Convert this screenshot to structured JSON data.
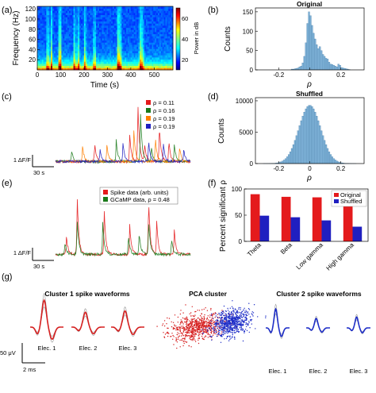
{
  "figure": {
    "panel_labels": [
      "(a)",
      "(b)",
      "(c)",
      "(d)",
      "(e)",
      "(f)",
      "(g)"
    ],
    "chart_data": [
      {
        "panel": "(a)",
        "type": "heatmap",
        "xlabel": "Time (s)",
        "ylabel": "Frequency (Hz)",
        "x_ticks": [
          "0",
          "100",
          "200",
          "300",
          "400",
          "500"
        ],
        "y_ticks": [
          "20",
          "40",
          "60",
          "80",
          "100",
          "120"
        ],
        "xlim": [
          0,
          580
        ],
        "ylim": [
          0,
          125
        ],
        "colorbar": {
          "label": "Power in dB",
          "ticks": [
            "20",
            "40",
            "60"
          ],
          "range": [
            10,
            70
          ]
        },
        "colormap": [
          "#00007f",
          "#0000ff",
          "#0080ff",
          "#00ffff",
          "#80ff80",
          "#ffff00",
          "#ff8000",
          "#ff0000",
          "#7f0000"
        ],
        "hot_times": [
          45,
          60,
          95,
          100,
          160,
          175,
          205,
          245,
          345,
          350,
          355,
          440,
          445,
          450
        ]
      },
      {
        "panel": "(b)",
        "type": "bar",
        "title": "Original",
        "xlabel": "ρ",
        "ylabel": "Counts",
        "x_ticks": [
          "-0.2",
          "0",
          "0.2"
        ],
        "y_ticks": [
          "0",
          "50",
          "100",
          "150"
        ],
        "xlim": [
          -0.35,
          0.35
        ],
        "ylim": [
          0,
          160
        ],
        "bin_width": 0.01,
        "bin_centers": [
          -0.115,
          -0.105,
          -0.095,
          -0.085,
          -0.075,
          -0.065,
          -0.055,
          -0.045,
          -0.035,
          -0.025,
          -0.015,
          -0.005,
          0.005,
          0.015,
          0.025,
          0.035,
          0.045,
          0.055,
          0.065,
          0.075,
          0.085,
          0.095,
          0.105,
          0.115,
          0.125,
          0.135,
          0.145,
          0.155,
          0.165,
          0.175,
          0.185,
          0.195,
          0.205,
          0.215,
          0.225,
          0.235,
          0.245,
          0.255
        ],
        "values": [
          2,
          2,
          3,
          4,
          5,
          8,
          10,
          18,
          35,
          70,
          120,
          150,
          140,
          115,
          95,
          80,
          65,
          55,
          60,
          50,
          40,
          35,
          30,
          28,
          20,
          15,
          14,
          12,
          10,
          8,
          15,
          12,
          6,
          5,
          4,
          3,
          2,
          1
        ],
        "bar_color": "#7fb3d9"
      },
      {
        "panel": "(c)",
        "type": "line",
        "legend": [
          "ρ = 0.11",
          "ρ = 0.16",
          "ρ = 0.19",
          "ρ = 0.19"
        ],
        "series_colors": [
          "#e41a1c",
          "#1a7a1a",
          "#ff7f00",
          "#1f1fc0"
        ],
        "scale_bars": {
          "y": "1 ΔF/F",
          "x": "30 s"
        },
        "series": [
          {
            "color": "#e41a1c",
            "peaks": [
              [
                0.29,
                0.3
              ],
              [
                0.55,
                0.45
              ],
              [
                0.61,
                1.0
              ],
              [
                0.66,
                0.3
              ],
              [
                0.77,
                0.6
              ],
              [
                0.84,
                0.35
              ]
            ]
          },
          {
            "color": "#1a7a1a",
            "peaks": [
              [
                0.12,
                0.2
              ],
              [
                0.45,
                0.35
              ],
              [
                0.63,
                0.8
              ],
              [
                0.71,
                0.25
              ],
              [
                0.88,
                0.3
              ]
            ]
          },
          {
            "color": "#ff7f00",
            "peaks": [
              [
                0.2,
                0.25
              ],
              [
                0.38,
                0.3
              ],
              [
                0.58,
                0.55
              ],
              [
                0.74,
                0.4
              ],
              [
                0.92,
                0.25
              ]
            ]
          },
          {
            "color": "#1f1fc0",
            "peaks": [
              [
                0.33,
                0.2
              ],
              [
                0.5,
                0.3
              ],
              [
                0.69,
                0.35
              ],
              [
                0.8,
                0.3
              ],
              [
                0.95,
                0.2
              ]
            ]
          }
        ]
      },
      {
        "panel": "(d)",
        "type": "bar",
        "title": "Shuffled",
        "xlabel": "ρ",
        "ylabel": "Counts",
        "x_ticks": [
          "-0.2",
          "0",
          "0.2"
        ],
        "y_ticks": [
          "0",
          "5000",
          "10000"
        ],
        "xlim": [
          -0.35,
          0.35
        ],
        "ylim": [
          0,
          10500
        ],
        "distribution": {
          "shape": "gaussian",
          "mean": 0,
          "sd": 0.07,
          "peak": 9300,
          "bin_width": 0.01,
          "range": [
            -0.3,
            0.3
          ]
        },
        "bar_color": "#7fb3d9"
      },
      {
        "panel": "(e)",
        "type": "line",
        "legend": [
          "Spike data (arb. units)",
          "GCaMP data, ρ = 0.48"
        ],
        "series_colors": [
          "#e41a1c",
          "#1a7a1a"
        ],
        "scale_bars": {
          "y": "1 ΔF/F",
          "x": "30 s"
        },
        "series": [
          {
            "color": "#e41a1c",
            "peaks": [
              [
                0.08,
                0.3
              ],
              [
                0.16,
                0.95
              ],
              [
                0.36,
                0.75
              ],
              [
                0.55,
                0.45
              ],
              [
                0.69,
                0.9
              ],
              [
                0.75,
                0.5
              ],
              [
                0.88,
                0.4
              ]
            ]
          },
          {
            "color": "#1a7a1a",
            "peaks": [
              [
                0.07,
                0.2
              ],
              [
                0.16,
                0.55
              ],
              [
                0.35,
                0.5
              ],
              [
                0.54,
                0.3
              ],
              [
                0.62,
                0.35
              ],
              [
                0.69,
                0.55
              ],
              [
                0.86,
                0.25
              ]
            ]
          }
        ]
      },
      {
        "panel": "(f)",
        "type": "bar",
        "ylabel": "Percent significant ρ",
        "categories": [
          "Theta",
          "Beta",
          "Low gamma",
          "High gamma"
        ],
        "y_ticks": [
          "0",
          "50",
          "100"
        ],
        "ylim": [
          0,
          100
        ],
        "series": [
          {
            "name": "Original",
            "color": "#e41a1c",
            "values": [
              90,
              85,
              84,
              75
            ]
          },
          {
            "name": "Shuffled",
            "color": "#1f1fc0",
            "values": [
              49,
              46,
              40,
              28
            ]
          }
        ]
      },
      {
        "panel": "(g)",
        "type": "line",
        "subtitles": [
          "Cluster 1 spike waveforms",
          "PCA cluster",
          "Cluster 2 spike waveforms"
        ],
        "cluster1_labels": [
          "Elec. 1",
          "Elec. 2",
          "Elec. 3"
        ],
        "cluster2_labels": [
          "Elec. 1",
          "Elec. 2",
          "Elec. 3"
        ],
        "scale_bars": {
          "y": "50 μV",
          "x": "2 ms"
        },
        "cluster1_color": "#d62020",
        "cluster2_color": "#1f2fc8",
        "envelope_color": "#999999",
        "cluster1_amplitudes": [
          1.0,
          0.55,
          0.6
        ],
        "cluster2_amplitudes": [
          0.7,
          0.35,
          0.4
        ]
      }
    ]
  }
}
